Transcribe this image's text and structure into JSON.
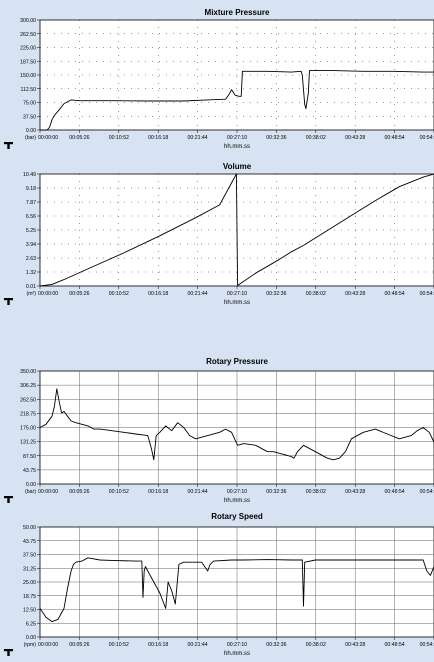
{
  "chart_data": [
    {
      "type": "line",
      "title": "Mixture Pressure",
      "unit": "(bar)",
      "xlabel": "hh.mm.ss",
      "x_ticks": [
        "00:00:00",
        "00:05:26",
        "00:10:52",
        "00:16:18",
        "00:21:44",
        "00:27:10",
        "00:32:36",
        "00:38:02",
        "00:43:28",
        "00:48:54",
        "00:54:"
      ],
      "y_ticks": [
        "0.00",
        "37.50",
        "75.00",
        "112.50",
        "150.00",
        "187.50",
        "225.00",
        "262.50",
        "300.00"
      ],
      "ylim": [
        0,
        300
      ],
      "xlim_seconds": [
        0,
        3290
      ],
      "grid": "dotted",
      "color": "#000000",
      "points": [
        [
          0,
          0
        ],
        [
          60,
          0
        ],
        [
          80,
          8
        ],
        [
          100,
          28
        ],
        [
          120,
          40
        ],
        [
          160,
          55
        ],
        [
          200,
          72
        ],
        [
          260,
          82
        ],
        [
          330,
          80
        ],
        [
          600,
          80
        ],
        [
          900,
          79
        ],
        [
          1200,
          79
        ],
        [
          1400,
          82
        ],
        [
          1550,
          84
        ],
        [
          1580,
          98
        ],
        [
          1600,
          110
        ],
        [
          1630,
          95
        ],
        [
          1660,
          92
        ],
        [
          1680,
          92
        ],
        [
          1690,
          160
        ],
        [
          1900,
          160
        ],
        [
          2100,
          158
        ],
        [
          2180,
          160
        ],
        [
          2190,
          150
        ],
        [
          2200,
          110
        ],
        [
          2210,
          70
        ],
        [
          2220,
          58
        ],
        [
          2240,
          100
        ],
        [
          2250,
          162
        ],
        [
          2450,
          162
        ],
        [
          2700,
          160
        ],
        [
          2950,
          160
        ],
        [
          3200,
          158
        ],
        [
          3290,
          158
        ]
      ]
    },
    {
      "type": "line",
      "title": "Volume",
      "unit": "(m³)",
      "xlabel": "hh.mm.ss",
      "x_ticks": [
        "00:00:00",
        "00:05:26",
        "00:10:52",
        "00:16:18",
        "00:21:44",
        "00:27:10",
        "00:32:36",
        "00:38:02",
        "00:43:28",
        "00:48:54",
        "00:54:"
      ],
      "y_ticks": [
        "0.01",
        "1.32",
        "2.63",
        "3.94",
        "5.25",
        "6.56",
        "7.87",
        "9.18",
        "10.49"
      ],
      "ylim": [
        0,
        10.49
      ],
      "xlim_seconds": [
        0,
        3290
      ],
      "grid": "dotted",
      "color": "#000000",
      "points": [
        [
          0,
          0.01
        ],
        [
          100,
          0.15
        ],
        [
          200,
          0.6
        ],
        [
          400,
          1.6
        ],
        [
          700,
          3.1
        ],
        [
          1000,
          4.7
        ],
        [
          1300,
          6.4
        ],
        [
          1500,
          7.6
        ],
        [
          1640,
          10.49
        ],
        [
          1650,
          0.05
        ],
        [
          1800,
          1.2
        ],
        [
          2000,
          2.5
        ],
        [
          2100,
          3.2
        ],
        [
          2200,
          3.8
        ],
        [
          2400,
          5.2
        ],
        [
          2600,
          6.6
        ],
        [
          2800,
          8.0
        ],
        [
          3000,
          9.3
        ],
        [
          3200,
          10.2
        ],
        [
          3290,
          10.49
        ]
      ]
    },
    {
      "type": "line",
      "title": "Rotary Pressure",
      "unit": "(bar)",
      "xlabel": "hh.mm.ss",
      "x_ticks": [
        "00:00:00",
        "00:05:26",
        "00:10:52",
        "00:16:18",
        "00:21:44",
        "00:27:10",
        "00:32:36",
        "00:38:02",
        "00:43:28",
        "00:48:54",
        "00:54:"
      ],
      "y_ticks": [
        "0.00",
        "43.75",
        "87.50",
        "131.25",
        "175.00",
        "218.75",
        "262.50",
        "306.25",
        "350.00"
      ],
      "ylim": [
        0,
        350
      ],
      "xlim_seconds": [
        0,
        3290
      ],
      "grid": "solid",
      "color": "#000000",
      "points": [
        [
          0,
          175
        ],
        [
          50,
          185
        ],
        [
          100,
          210
        ],
        [
          120,
          240
        ],
        [
          140,
          295
        ],
        [
          160,
          255
        ],
        [
          180,
          220
        ],
        [
          200,
          225
        ],
        [
          230,
          210
        ],
        [
          260,
          195
        ],
        [
          300,
          190
        ],
        [
          400,
          180
        ],
        [
          450,
          170
        ],
        [
          500,
          170
        ],
        [
          600,
          165
        ],
        [
          700,
          160
        ],
        [
          800,
          155
        ],
        [
          900,
          150
        ],
        [
          930,
          110
        ],
        [
          950,
          75
        ],
        [
          970,
          150
        ],
        [
          1000,
          160
        ],
        [
          1050,
          180
        ],
        [
          1100,
          165
        ],
        [
          1150,
          190
        ],
        [
          1200,
          175
        ],
        [
          1250,
          150
        ],
        [
          1300,
          140
        ],
        [
          1400,
          150
        ],
        [
          1500,
          160
        ],
        [
          1550,
          170
        ],
        [
          1600,
          160
        ],
        [
          1650,
          120
        ],
        [
          1700,
          125
        ],
        [
          1800,
          120
        ],
        [
          1900,
          100
        ],
        [
          1950,
          100
        ],
        [
          2000,
          95
        ],
        [
          2050,
          90
        ],
        [
          2100,
          85
        ],
        [
          2120,
          80
        ],
        [
          2150,
          100
        ],
        [
          2200,
          120
        ],
        [
          2300,
          100
        ],
        [
          2400,
          80
        ],
        [
          2450,
          75
        ],
        [
          2500,
          80
        ],
        [
          2550,
          100
        ],
        [
          2600,
          140
        ],
        [
          2700,
          160
        ],
        [
          2800,
          170
        ],
        [
          2900,
          155
        ],
        [
          3000,
          140
        ],
        [
          3100,
          150
        ],
        [
          3150,
          165
        ],
        [
          3200,
          175
        ],
        [
          3250,
          160
        ],
        [
          3290,
          130
        ]
      ]
    },
    {
      "type": "line",
      "title": "Rotary Speed",
      "unit": "(rpm)",
      "xlabel": "hh.mm.ss",
      "x_ticks": [
        "00:00:00",
        "00:05:26",
        "00:10:52",
        "00:16:18",
        "00:21:44",
        "00:27:10",
        "00:32:36",
        "00:38:02",
        "00:43:28",
        "00:48:54",
        "00:54:"
      ],
      "y_ticks": [
        "0.00",
        "6.25",
        "12.50",
        "18.75",
        "25.00",
        "31.25",
        "37.50",
        "43.75",
        "50.00"
      ],
      "ylim": [
        0,
        50
      ],
      "xlim_seconds": [
        0,
        3290
      ],
      "grid": "solid",
      "color": "#000000",
      "points": [
        [
          0,
          13
        ],
        [
          50,
          9
        ],
        [
          100,
          7
        ],
        [
          150,
          8
        ],
        [
          200,
          13
        ],
        [
          230,
          22
        ],
        [
          260,
          30
        ],
        [
          280,
          33
        ],
        [
          300,
          34
        ],
        [
          350,
          34.5
        ],
        [
          400,
          36
        ],
        [
          500,
          35
        ],
        [
          600,
          34.8
        ],
        [
          800,
          34.5
        ],
        [
          850,
          34.5
        ],
        [
          860,
          18
        ],
        [
          870,
          30
        ],
        [
          880,
          32
        ],
        [
          950,
          25
        ],
        [
          1000,
          20
        ],
        [
          1050,
          13
        ],
        [
          1070,
          25
        ],
        [
          1100,
          21
        ],
        [
          1130,
          15
        ],
        [
          1160,
          33
        ],
        [
          1200,
          34
        ],
        [
          1350,
          34
        ],
        [
          1400,
          30
        ],
        [
          1420,
          33
        ],
        [
          1450,
          34.5
        ],
        [
          1600,
          35
        ],
        [
          1700,
          35
        ],
        [
          1900,
          35.2
        ],
        [
          2100,
          35
        ],
        [
          2190,
          35
        ],
        [
          2200,
          14
        ],
        [
          2210,
          34
        ],
        [
          2300,
          35
        ],
        [
          2500,
          35
        ],
        [
          2600,
          35
        ],
        [
          2800,
          35
        ],
        [
          3000,
          35
        ],
        [
          3100,
          35
        ],
        [
          3200,
          35
        ],
        [
          3230,
          30
        ],
        [
          3260,
          28
        ],
        [
          3290,
          32
        ]
      ]
    }
  ]
}
